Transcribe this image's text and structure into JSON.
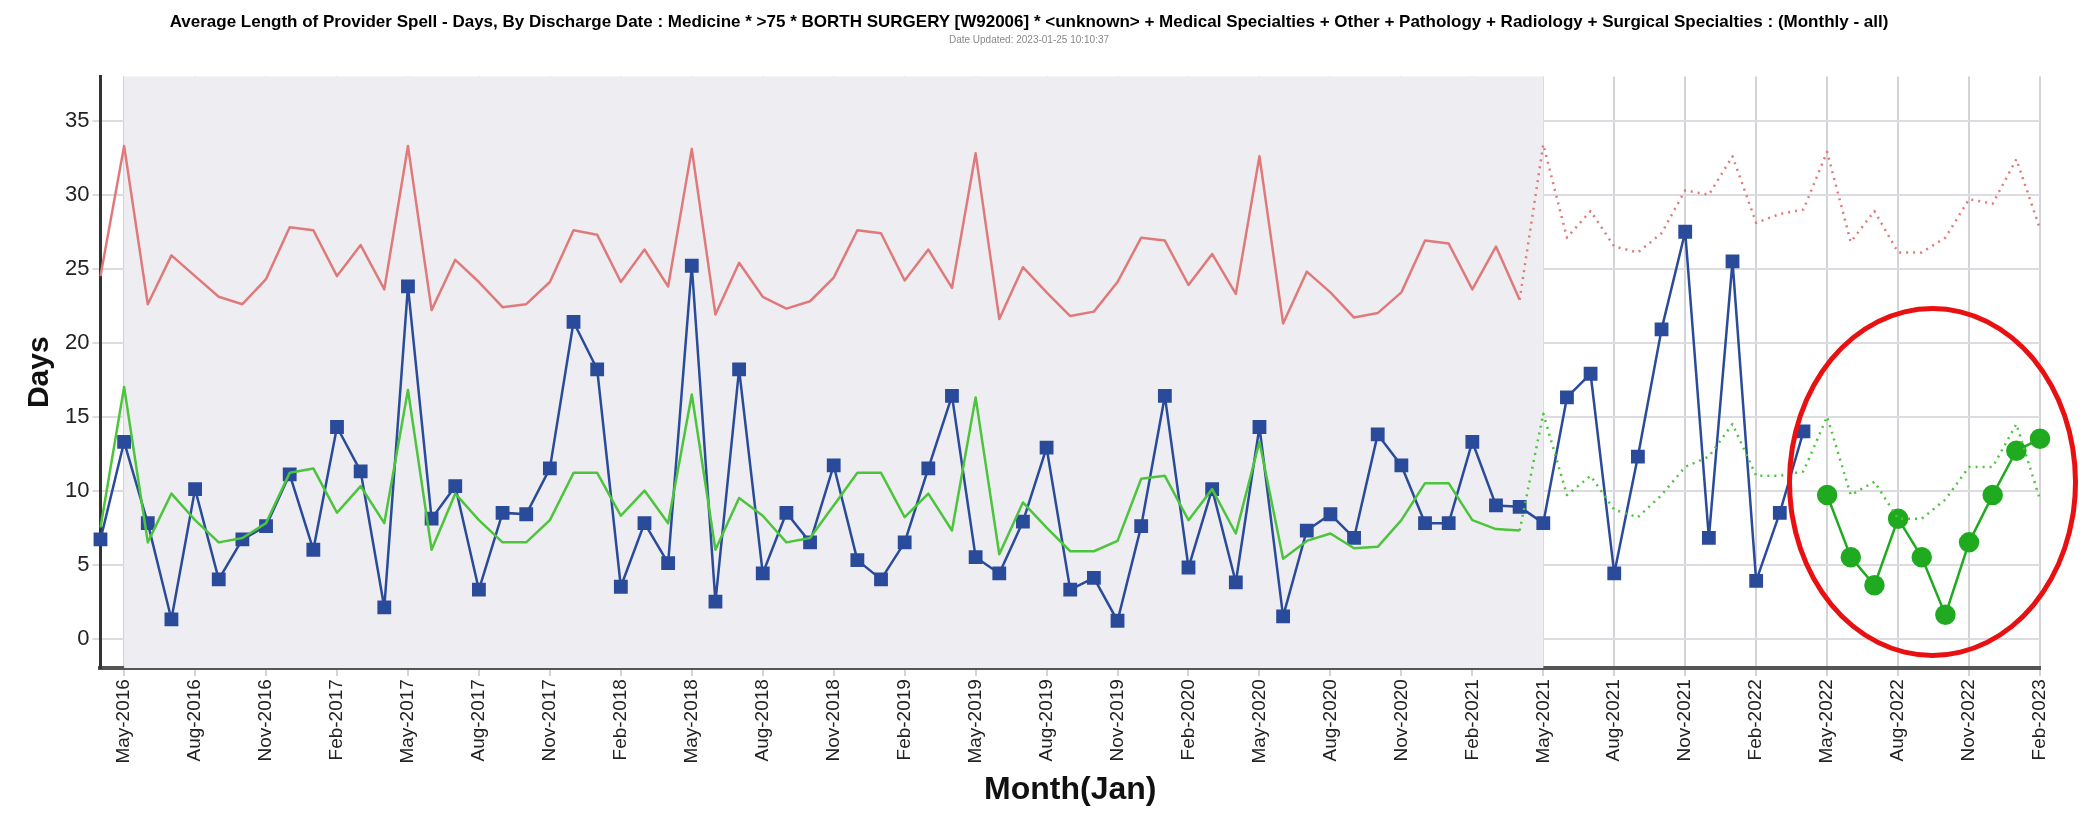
{
  "chart_data": {
    "type": "line",
    "title": "Average Length of Provider Spell - Days, By Discharge Date : Medicine * >75 * BORTH SURGERY [W92006] * <unknown> + Medical Specialties + Other + Pathology + Radiology + Surgical Specialties : (Monthly - all)",
    "subtitle": "Date Updated: 2023-01-25 10:10:37",
    "xlabel": "Month(Jan)",
    "ylabel": "Days",
    "categories": [
      null,
      "May-2016",
      null,
      null,
      "Aug-2016",
      null,
      null,
      "Nov-2016",
      null,
      null,
      "Feb-2017",
      null,
      null,
      "May-2017",
      null,
      null,
      "Aug-2017",
      null,
      null,
      "Nov-2017",
      null,
      null,
      "Feb-2018",
      null,
      null,
      "May-2018",
      null,
      null,
      "Aug-2018",
      null,
      null,
      "Nov-2018",
      null,
      null,
      "Feb-2019",
      null,
      null,
      "May-2019",
      null,
      null,
      "Aug-2019",
      null,
      null,
      "Nov-2019",
      null,
      null,
      "Feb-2020",
      null,
      null,
      "May-2020",
      null,
      null,
      "Aug-2020",
      null,
      null,
      "Nov-2020",
      null,
      null,
      "Feb-2021",
      null,
      null,
      "May-2021",
      null,
      null,
      "Aug-2021",
      null,
      null,
      "Nov-2021",
      null,
      null,
      "Feb-2022",
      null,
      null,
      "May-2022",
      null,
      null,
      "Aug-2022",
      null,
      null,
      "Nov-2022",
      null,
      null,
      "Feb-2023"
    ],
    "ylim": [
      -2,
      38
    ],
    "yticks": [
      0,
      5,
      10,
      15,
      20,
      25,
      30,
      35
    ],
    "grid": true,
    "legend": false,
    "bands": [
      {
        "axis": "x",
        "from": "May-2016",
        "to": "May-2021",
        "color": "#eeeef2"
      }
    ],
    "series": [
      {
        "type": "line",
        "color": "#e07a7a",
        "marker": "none",
        "line_style": "solid",
        "values": [
          24.5,
          33.3,
          22.6,
          25.9,
          24.5,
          23.1,
          22.6,
          24.3,
          27.8,
          27.6,
          24.5,
          26.6,
          23.6,
          33.3,
          22.2,
          25.6,
          24.1,
          22.4,
          22.6,
          24.1,
          27.6,
          27.3,
          24.1,
          26.3,
          23.8,
          33.1,
          21.9,
          25.4,
          23.1,
          22.3,
          22.8,
          24.4,
          27.6,
          27.4,
          24.2,
          26.3,
          23.7,
          32.8,
          21.6,
          25.1,
          23.4,
          21.8,
          22.1,
          24.1,
          27.1,
          26.9,
          23.9,
          26,
          23.3,
          32.6,
          21.3,
          24.8,
          23.4,
          21.7,
          22,
          23.4,
          26.9,
          26.7,
          23.6,
          26.5,
          22.9,
          null,
          null,
          null,
          null,
          null,
          null,
          null,
          null,
          null,
          null,
          null,
          null,
          null,
          null,
          null,
          null,
          null,
          null,
          null,
          null,
          null,
          null
        ]
      },
      {
        "type": "line",
        "color": "#e07a7a",
        "marker": "none",
        "line_style": "dotted",
        "values": [
          null,
          null,
          null,
          null,
          null,
          null,
          null,
          null,
          null,
          null,
          null,
          null,
          null,
          null,
          null,
          null,
          null,
          null,
          null,
          null,
          null,
          null,
          null,
          null,
          null,
          null,
          null,
          null,
          null,
          null,
          null,
          null,
          null,
          null,
          null,
          null,
          null,
          null,
          null,
          null,
          null,
          null,
          null,
          null,
          null,
          null,
          null,
          null,
          null,
          null,
          null,
          null,
          null,
          null,
          null,
          null,
          null,
          null,
          null,
          null,
          22.9,
          33.4,
          27.1,
          28.9,
          26.5,
          26.1,
          27.4,
          30.3,
          30,
          32.6,
          28.1,
          28.7,
          29,
          32.9,
          26.8,
          28.9,
          26.1,
          26.1,
          27.1,
          29.7,
          29.4,
          32.4,
          27.7
        ]
      },
      {
        "type": "line",
        "color": "#4cc43c",
        "marker": "none",
        "line_style": "solid",
        "values": [
          7.5,
          17,
          6.5,
          9.8,
          8,
          6.5,
          6.8,
          7.8,
          11.2,
          11.5,
          8.5,
          10.3,
          7.8,
          16.8,
          6.0,
          9.8,
          8.0,
          6.5,
          6.5,
          8.0,
          11.2,
          11.2,
          8.3,
          10.0,
          7.8,
          16.5,
          6.0,
          9.5,
          8.3,
          6.5,
          6.8,
          9.0,
          11.2,
          11.2,
          8.2,
          9.8,
          7.3,
          16.3,
          5.7,
          9.2,
          7.5,
          5.9,
          5.9,
          6.6,
          10.8,
          11.0,
          8.0,
          10.1,
          7.1,
          13.3,
          5.4,
          6.6,
          7.1,
          6.1,
          6.2,
          8.0,
          10.5,
          10.5,
          8.0,
          7.4,
          7.3,
          null,
          null,
          null,
          null,
          null,
          null,
          null,
          null,
          null,
          null,
          null,
          null,
          null,
          null,
          null,
          null,
          null,
          null,
          null,
          null,
          null,
          null
        ]
      },
      {
        "type": "line",
        "color": "#4cc43c",
        "marker": "none",
        "line_style": "dotted",
        "values": [
          null,
          null,
          null,
          null,
          null,
          null,
          null,
          null,
          null,
          null,
          null,
          null,
          null,
          null,
          null,
          null,
          null,
          null,
          null,
          null,
          null,
          null,
          null,
          null,
          null,
          null,
          null,
          null,
          null,
          null,
          null,
          null,
          null,
          null,
          null,
          null,
          null,
          null,
          null,
          null,
          null,
          null,
          null,
          null,
          null,
          null,
          null,
          null,
          null,
          null,
          null,
          null,
          null,
          null,
          null,
          null,
          null,
          null,
          null,
          null,
          7.3,
          15.2,
          9.7,
          11,
          8.7,
          8.2,
          9.7,
          11.6,
          12.3,
          14.5,
          11,
          11,
          11.3,
          15,
          9.7,
          10.6,
          8.1,
          8.1,
          9.4,
          11.6,
          11.6,
          14.5,
          9.4
        ]
      },
      {
        "type": "line",
        "color": "#2a4a9a",
        "marker": "square",
        "line_style": "solid",
        "values": [
          6.7,
          13.3,
          7.8,
          1.3,
          10.1,
          4.0,
          6.7,
          7.6,
          11.1,
          6.0,
          14.3,
          11.3,
          2.1,
          23.8,
          8.1,
          10.3,
          3.3,
          8.5,
          8.4,
          11.5,
          21.4,
          18.2,
          3.5,
          7.8,
          5.1,
          25.2,
          2.5,
          18.2,
          4.4,
          8.5,
          6.5,
          11.7,
          5.3,
          4.0,
          6.5,
          11.5,
          16.4,
          5.5,
          4.4,
          7.9,
          12.9,
          3.3,
          4.1,
          1.2,
          7.6,
          16.4,
          4.8,
          10.1,
          3.8,
          14.3,
          1.5,
          7.3,
          8.4,
          6.8,
          13.8,
          11.7,
          7.8,
          7.8,
          13.3,
          9.0,
          8.9,
          7.8,
          16.3,
          17.9,
          4.4,
          12.3,
          20.9,
          27.5,
          6.8,
          25.5,
          3.9,
          8.5,
          14.0,
          null,
          null,
          null,
          null,
          null,
          null,
          null,
          null,
          null,
          null
        ]
      },
      {
        "type": "line",
        "color": "#1faa1f",
        "marker": "circle",
        "line_style": "solid",
        "values": [
          null,
          null,
          null,
          null,
          null,
          null,
          null,
          null,
          null,
          null,
          null,
          null,
          null,
          null,
          null,
          null,
          null,
          null,
          null,
          null,
          null,
          null,
          null,
          null,
          null,
          null,
          null,
          null,
          null,
          null,
          null,
          null,
          null,
          null,
          null,
          null,
          null,
          null,
          null,
          null,
          null,
          null,
          null,
          null,
          null,
          null,
          null,
          null,
          null,
          null,
          null,
          null,
          null,
          null,
          null,
          null,
          null,
          null,
          null,
          null,
          null,
          null,
          null,
          null,
          null,
          null,
          null,
          null,
          null,
          null,
          null,
          null,
          null,
          9.7,
          5.5,
          3.6,
          8.1,
          5.5,
          1.6,
          6.5,
          9.7,
          12.7,
          13.5
        ]
      }
    ]
  }
}
